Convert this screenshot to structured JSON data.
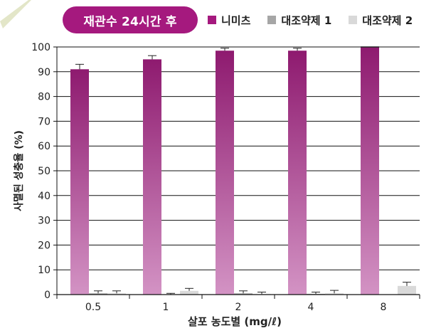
{
  "header": {
    "title": "재관수 24시간 후"
  },
  "legend": [
    {
      "label": "니미츠",
      "color": "#a5197e"
    },
    {
      "label": "대조약제 1",
      "color": "#a6a6a6"
    },
    {
      "label": "대조약제 2",
      "color": "#d9d9d9"
    }
  ],
  "colors": {
    "background_band": "#e3e6c8",
    "primary_top": "#8e1a6f",
    "primary_bottom": "#d393c4"
  },
  "chart_data": {
    "type": "bar",
    "title": "재관수 24시간 후",
    "xlabel": "살포 농도별 (mg/ℓ)",
    "ylabel": "사멸된 성충율 (%)",
    "ylim": [
      0,
      100
    ],
    "yticks": [
      0,
      10,
      20,
      30,
      40,
      50,
      60,
      70,
      80,
      90,
      100
    ],
    "categories": [
      "0.5",
      "1",
      "2",
      "4",
      "8"
    ],
    "series": [
      {
        "name": "니미츠",
        "values": [
          91,
          95,
          98.5,
          98.5,
          100
        ],
        "errors": [
          2,
          1.5,
          1,
          1,
          0
        ]
      },
      {
        "name": "대조약제 1",
        "values": [
          0.5,
          0,
          0.5,
          0.3,
          0
        ],
        "errors": [
          1,
          0.5,
          1,
          0.7,
          0
        ]
      },
      {
        "name": "대조약제 2",
        "values": [
          0.5,
          1.5,
          0.2,
          0.5,
          3.5
        ],
        "errors": [
          1,
          1,
          0.8,
          1.2,
          1.5
        ]
      }
    ],
    "grid": true,
    "legend_position": "top"
  }
}
